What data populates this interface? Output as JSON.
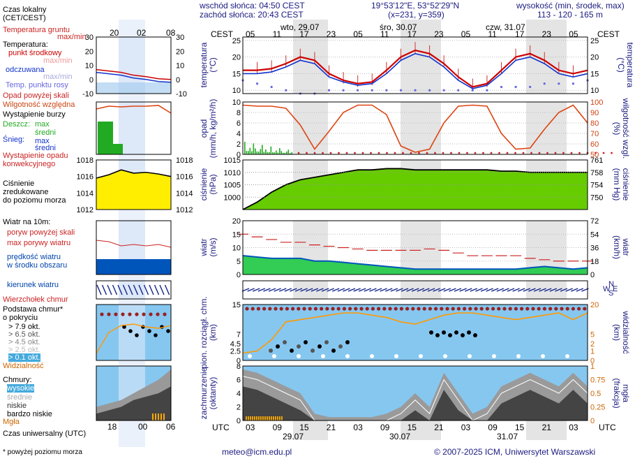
{
  "header": {
    "sunrise": "wschód słońca: 04:50 CEST",
    "sunset": "zachód słońca: 20:43 CEST",
    "coords": "19°53'12\"E, 53°52'29\"N",
    "grid": "(x=231, y=359)",
    "altitude_label": "wysokość (min, środek, max)",
    "altitude_values": "113 - 120 - 165 m"
  },
  "footer": {
    "note": "* powyżej poziomu morza",
    "email": "meteo@icm.edu.pl",
    "copyright": "© 2007-2025 ICM, Uniwersytet Warszawski"
  },
  "left_legend": {
    "local_time": "Czas lokalny\n(CET/CEST)",
    "soil_temp": "Temperatura gruntu",
    "max_min": "max/min",
    "temperature": "Temperatura:",
    "mid_point": "punkt środkowy",
    "max_min2": "max/min",
    "perceived": "odczuwana",
    "max_min3": "max/min",
    "dew_point": "Temp. punktu rosy",
    "precip_above": "Opad powyżej skali",
    "humidity": "Wilgotność względna",
    "storm": "Wystąpienie burzy",
    "rain": "Deszcz:",
    "max": "max",
    "mean": "średni",
    "snow": "Śnieg:",
    "max2": "max",
    "mean2": "średni",
    "conv": "Wystąpienie opadu\nkonwekcyjnego",
    "pressure": "Ciśnienie\nzredukowane\ndo poziomu morza",
    "wind_10m": "Wiatr na 10m:",
    "gust_above": "poryw powyżej skali",
    "gust_max": "max porywy wiatru",
    "wind_speed": "prędkość wiatru\nw środku obszaru",
    "wind_dir": "kierunek wiatru",
    "cloud_top": "Wierzchołek chmur",
    "cloud_base": "Podstawa chmur*\no pokryciu",
    "okt79": "> 7.9 okt.",
    "okt65": "> 6.5 okt.",
    "okt45": "> 4.5 okt.",
    "okt25": "> 2.5 okt.",
    "okt01": "> 0.1 okt.",
    "visibility": "Widzialność",
    "clouds": "Chmury:",
    "high": "wysokie",
    "medium": "średnie",
    "low": "niskie",
    "very_low": "bardzo niskie",
    "fog": "Mgła",
    "utc_label": "Czas uniwersalny (UTC)"
  },
  "axes": {
    "cest": "CEST",
    "utc": "UTC",
    "days": [
      "wto, 29.07",
      "śro, 30.07",
      "czw, 31.07"
    ],
    "utc_days": [
      "29.07",
      "30.07",
      "31.07"
    ],
    "cest_hours": [
      "05",
      "11",
      "17",
      "23",
      "05",
      "11",
      "17",
      "23",
      "05",
      "11",
      "17",
      "23",
      "05"
    ],
    "utc_hours": [
      "03",
      "09",
      "15",
      "21",
      "03",
      "09",
      "15",
      "21",
      "03",
      "09",
      "15",
      "21",
      "03"
    ],
    "small_cest": [
      "20",
      "02",
      "08"
    ],
    "small_utc": [
      "18",
      "00",
      "06"
    ],
    "left_temp": "temperatura\n(°C)",
    "right_temp": "(°C)\ntemperatura",
    "left_precip": "opad\n(mm/h, kg/m²/h)",
    "right_precip": "(%)\nwilgotność wzgl.",
    "left_pressure": "ciśnienie\n(hPa)",
    "right_pressure": "(mm Hg)\nciśnienie",
    "left_wind": "wiatr\n(m/s)",
    "right_wind": "(km/h)\nwiatr",
    "left_cloud": "pion. rozciągł. chm.\n(km)",
    "right_cloud": "(km)\nwidzialność",
    "left_cover": "zachmurzenie\n(oktanty)",
    "right_cover": "(frakcja)\nmgła",
    "compass": [
      "N",
      "W",
      "E",
      "S"
    ]
  },
  "colors": {
    "night": "#e4e4e4",
    "sky": "#86c7f0",
    "temp_line": "#cc0000",
    "feel_line": "#1133cc",
    "humidity_line": "#dd4411",
    "pressure_fill": "#66cc00",
    "wind_fill": "#0055bb",
    "visibility_line": "#ff9900"
  },
  "chart_data": [
    {
      "type": "line",
      "panel": "temperature",
      "x": [
        "03",
        "06",
        "09",
        "12",
        "15",
        "18",
        "21",
        "00",
        "03",
        "06",
        "09",
        "12",
        "15",
        "18",
        "21",
        "00",
        "03",
        "06",
        "09",
        "12",
        "15",
        "18",
        "21",
        "00",
        "03"
      ],
      "series": [
        {
          "name": "punkt środkowy",
          "values": [
            16,
            16,
            16.5,
            18,
            20,
            19,
            15,
            13,
            12,
            12.5,
            16,
            20,
            22,
            21,
            18,
            14,
            11,
            12,
            16,
            20,
            21,
            19,
            16,
            15,
            16
          ]
        },
        {
          "name": "odczuwana",
          "values": [
            15,
            15,
            15.5,
            17,
            19,
            18,
            14,
            12.5,
            11.5,
            12,
            15,
            19,
            21,
            20,
            17,
            13,
            10.5,
            11.5,
            15,
            19,
            20,
            18,
            15,
            14,
            15
          ]
        },
        {
          "name": "Temp. punktu rosy",
          "values": [
            13,
            12,
            11,
            10,
            9,
            9,
            10,
            10,
            10,
            10,
            10,
            10,
            10,
            10,
            10,
            10,
            10,
            10,
            11,
            11,
            11,
            12,
            12,
            12,
            13
          ]
        }
      ],
      "ylim": [
        9,
        26
      ]
    },
    {
      "type": "line",
      "panel": "precipitation_humidity",
      "x": [
        "03",
        "06",
        "09",
        "12",
        "15",
        "18",
        "21",
        "00",
        "03",
        "06",
        "09",
        "12",
        "15",
        "18",
        "21",
        "00",
        "03",
        "06",
        "09",
        "12",
        "15",
        "18",
        "21",
        "00",
        "03"
      ],
      "series": [
        {
          "name": "Wilgotność względna",
          "values": [
            97,
            96,
            96,
            94,
            78,
            55,
            72,
            90,
            97,
            97,
            88,
            58,
            52,
            55,
            80,
            96,
            97,
            96,
            70,
            55,
            56,
            74,
            90,
            97,
            80
          ]
        },
        {
          "name": "Deszcz średni",
          "values": [
            1.5,
            0.5,
            0.2,
            0,
            0,
            0,
            0,
            0,
            0,
            0,
            0,
            0,
            0,
            0,
            0,
            0,
            0,
            0,
            0,
            0,
            0,
            0,
            0,
            0,
            0
          ]
        }
      ],
      "ylim": [
        0,
        10
      ]
    },
    {
      "type": "area",
      "panel": "pressure",
      "x": [
        "03",
        "06",
        "09",
        "12",
        "15",
        "18",
        "21",
        "00",
        "03",
        "06",
        "09",
        "12",
        "15",
        "18",
        "21",
        "00",
        "03",
        "06",
        "09",
        "12",
        "15",
        "18",
        "21",
        "00",
        "03"
      ],
      "values": [
        995,
        998,
        1002,
        1005,
        1007,
        1008,
        1009,
        1010,
        1011,
        1011,
        1011.5,
        1011.5,
        1011,
        1011,
        1011,
        1011,
        1011,
        1011,
        1010.5,
        1010.5,
        1010,
        1010,
        1010,
        1010,
        1010
      ],
      "ylim": [
        995,
        1015
      ]
    },
    {
      "type": "area",
      "panel": "wind",
      "x": [
        "03",
        "06",
        "09",
        "12",
        "15",
        "18",
        "21",
        "00",
        "03",
        "06",
        "09",
        "12",
        "15",
        "18",
        "21",
        "00",
        "03",
        "06",
        "09",
        "12",
        "15",
        "18",
        "21",
        "00",
        "03"
      ],
      "series": [
        {
          "name": "prędkość wiatru",
          "values": [
            7,
            6.5,
            6,
            6,
            6,
            5,
            5,
            4.5,
            4,
            3.5,
            3,
            2.5,
            2,
            2,
            2,
            2,
            2,
            2,
            2,
            2,
            2.5,
            3,
            2.5,
            2,
            2.5
          ]
        },
        {
          "name": "max porywy wiatru",
          "values": [
            15,
            14,
            13,
            12,
            12,
            11,
            10.5,
            10,
            9.5,
            9,
            9,
            9,
            9,
            9.5,
            9,
            8,
            7,
            7,
            7,
            7,
            6,
            5.5,
            5,
            5,
            5
          ]
        }
      ],
      "ylim": [
        0,
        20
      ]
    },
    {
      "type": "area",
      "panel": "cloud_cover",
      "x": [
        "03",
        "06",
        "09",
        "12",
        "15",
        "18",
        "21",
        "00",
        "03",
        "06",
        "09",
        "12",
        "15",
        "18",
        "21",
        "00",
        "03",
        "06",
        "09",
        "12",
        "15",
        "18",
        "21",
        "00",
        "03"
      ],
      "values": [
        7.5,
        7,
        6,
        5,
        4,
        1,
        0.5,
        0.5,
        0.5,
        0.5,
        1,
        2,
        4,
        2,
        7,
        4,
        1,
        2,
        5,
        6,
        7,
        6,
        5,
        7,
        5
      ],
      "ylim": [
        0,
        8
      ]
    }
  ]
}
